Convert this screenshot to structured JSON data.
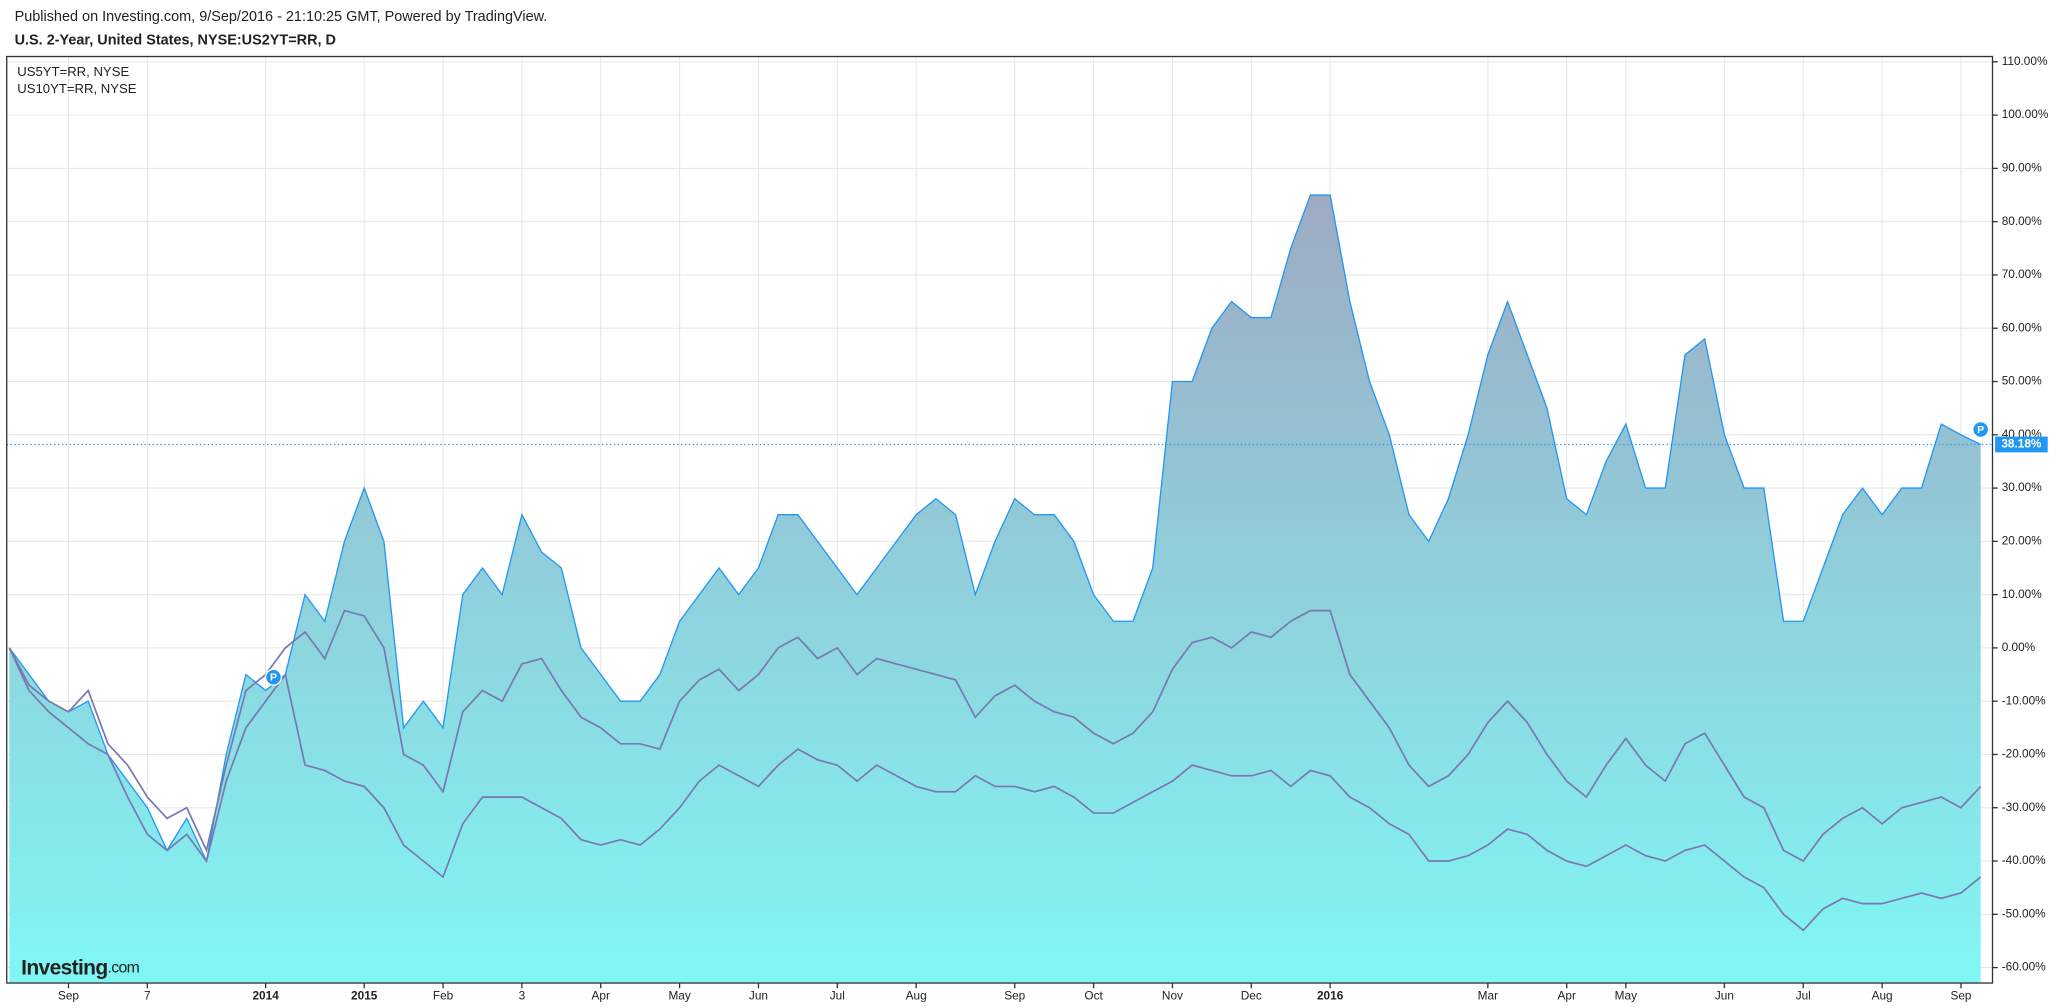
{
  "header": {
    "published": "Published on Investing.com, 9/Sep/2016 - 21:10:25 GMT, Powered by TradingView.",
    "title": "U.S. 2-Year, United States, NYSE:US2YT=RR, D"
  },
  "logo": {
    "main": "Investing",
    "suffix": ".com"
  },
  "markers": [
    "P",
    "P"
  ],
  "chart_data": {
    "type": "area",
    "categories": [
      null,
      null,
      null,
      "Sep",
      null,
      null,
      null,
      "7",
      null,
      null,
      null,
      null,
      null,
      "2014",
      null,
      null,
      null,
      null,
      "2015",
      null,
      null,
      null,
      "Feb",
      null,
      null,
      null,
      "3",
      null,
      null,
      null,
      "Apr",
      null,
      null,
      null,
      "May",
      null,
      null,
      null,
      "Jun",
      null,
      null,
      null,
      "Jul",
      null,
      null,
      null,
      "Aug",
      null,
      null,
      null,
      null,
      "Sep",
      null,
      null,
      null,
      "Oct",
      null,
      null,
      null,
      "Nov",
      null,
      null,
      null,
      "Dec",
      null,
      null,
      null,
      "2016",
      null,
      null,
      null,
      null,
      null,
      null,
      null,
      "Mar",
      null,
      null,
      null,
      "Apr",
      null,
      null,
      "May",
      null,
      null,
      null,
      null,
      "Jun",
      null,
      null,
      null,
      "Jul",
      null,
      null,
      null,
      "Aug",
      null,
      null,
      null,
      "Sep",
      null
    ],
    "series": [
      {
        "color": "#2196f3",
        "fill": [
          "#9eaac3",
          "#80f7f5"
        ],
        "values": [
          0,
          -5,
          -10,
          -12,
          -10,
          -20,
          -25,
          -30,
          -38,
          -32,
          -40,
          -20,
          -5,
          -8,
          -5,
          10,
          5,
          20,
          30,
          20,
          -15,
          -10,
          -15,
          10,
          15,
          10,
          25,
          18,
          15,
          0,
          -5,
          -10,
          -10,
          -5,
          5,
          10,
          15,
          10,
          15,
          25,
          25,
          20,
          15,
          10,
          15,
          20,
          25,
          28,
          25,
          10,
          20,
          28,
          25,
          25,
          20,
          10,
          5,
          5,
          15,
          50,
          50,
          60,
          65,
          62,
          62,
          75,
          85,
          85,
          65,
          50,
          40,
          25,
          20,
          28,
          40,
          55,
          65,
          55,
          45,
          28,
          25,
          35,
          42,
          30,
          30,
          55,
          58,
          40,
          30,
          30,
          5,
          5,
          15,
          25,
          30,
          25,
          30,
          30,
          42,
          40,
          38.18
        ],
        "value_labels": [
          null,
          null,
          null,
          null,
          null,
          null,
          null,
          null,
          null,
          null,
          null,
          null,
          null,
          null,
          null,
          null,
          null,
          null,
          null,
          null,
          null,
          null,
          null,
          null,
          null,
          null,
          null,
          null,
          null,
          null,
          null,
          null,
          null,
          null,
          null,
          null,
          null,
          null,
          null,
          null,
          null,
          null,
          null,
          null,
          null,
          null,
          null,
          null,
          null,
          null,
          null,
          null,
          null,
          null,
          null,
          null,
          null,
          null,
          null,
          null,
          null,
          null,
          null,
          null,
          null,
          null,
          null,
          null,
          null,
          null,
          null,
          null,
          null,
          null,
          null,
          null,
          null,
          null,
          null,
          null,
          null,
          null,
          null,
          null,
          null,
          null,
          null,
          null,
          null,
          null,
          null,
          null,
          null,
          null,
          null,
          null,
          null,
          null,
          null,
          null,
          "38.18%"
        ]
      },
      {
        "name": "US5YT=RR, NYSE",
        "color": "#7a78b2",
        "values": [
          0,
          -7,
          -10,
          -12,
          -8,
          -18,
          -22,
          -28,
          -32,
          -30,
          -38,
          -22,
          -8,
          -5,
          0,
          3,
          -2,
          7,
          6,
          0,
          -20,
          -22,
          -27,
          -12,
          -8,
          -10,
          -3,
          -2,
          -8,
          -13,
          -15,
          -18,
          -18,
          -19,
          -10,
          -6,
          -4,
          -8,
          -5,
          0,
          2,
          -2,
          0,
          -5,
          -2,
          -3,
          -4,
          -5,
          -6,
          -13,
          -9,
          -7,
          -10,
          -12,
          -13,
          -16,
          -18,
          -16,
          -12,
          -4,
          1,
          2,
          0,
          3,
          2,
          5,
          7,
          7,
          -5,
          -10,
          -15,
          -22,
          -26,
          -24,
          -20,
          -14,
          -10,
          -14,
          -20,
          -25,
          -28,
          -22,
          -17,
          -22,
          -25,
          -18,
          -16,
          -22,
          -28,
          -30,
          -38,
          -40,
          -35,
          -32,
          -30,
          -33,
          -30,
          -29,
          -28,
          -30,
          -26
        ]
      },
      {
        "name": "US10YT=RR, NYSE",
        "color": "#7a78b2",
        "values": [
          0,
          -8,
          -12,
          -15,
          -18,
          -20,
          -28,
          -35,
          -38,
          -35,
          -40,
          -25,
          -15,
          -10,
          -5,
          -22,
          -23,
          -25,
          -26,
          -30,
          -37,
          -40,
          -43,
          -33,
          -28,
          -28,
          -28,
          -30,
          -32,
          -36,
          -37,
          -36,
          -37,
          -34,
          -30,
          -25,
          -22,
          -24,
          -26,
          -22,
          -19,
          -21,
          -22,
          -25,
          -22,
          -24,
          -26,
          -27,
          -27,
          -24,
          -26,
          -26,
          -27,
          -26,
          -28,
          -31,
          -31,
          -29,
          -27,
          -25,
          -22,
          -23,
          -24,
          -24,
          -23,
          -26,
          -23,
          -24,
          -28,
          -30,
          -33,
          -35,
          -40,
          -40,
          -39,
          -37,
          -34,
          -35,
          -38,
          -40,
          -41,
          -39,
          -37,
          -39,
          -40,
          -38,
          -37,
          -40,
          -43,
          -45,
          -50,
          -53,
          -49,
          -47,
          -48,
          -48,
          -47,
          -46,
          -47,
          -46,
          -43
        ]
      }
    ],
    "ylim": [
      -62.9,
      111
    ],
    "yticks": [
      {
        "value": 110,
        "label": "110.00%"
      },
      {
        "value": 100,
        "label": "100.00%"
      },
      {
        "value": 90,
        "label": "90.00%"
      },
      {
        "value": 80,
        "label": "80.00%"
      },
      {
        "value": 70,
        "label": "70.00%"
      },
      {
        "value": 60,
        "label": "60.00%"
      },
      {
        "value": 50,
        "label": "50.00%"
      },
      {
        "value": 40,
        "label": "40.00%"
      },
      {
        "value": 30,
        "label": "30.00%"
      },
      {
        "value": 20,
        "label": "20.00%"
      },
      {
        "value": 10,
        "label": "10.00%"
      },
      {
        "value": 0,
        "label": "0.00%"
      },
      {
        "value": -10,
        "label": "-10.00%"
      },
      {
        "value": -20,
        "label": "-20.00%"
      },
      {
        "value": -30,
        "label": "-30.00%"
      },
      {
        "value": -40,
        "label": "-40.00%"
      },
      {
        "value": -50,
        "label": "-50.00%"
      },
      {
        "value": -60,
        "label": "-60.00%"
      }
    ],
    "grid": true,
    "legend": "top-left"
  }
}
